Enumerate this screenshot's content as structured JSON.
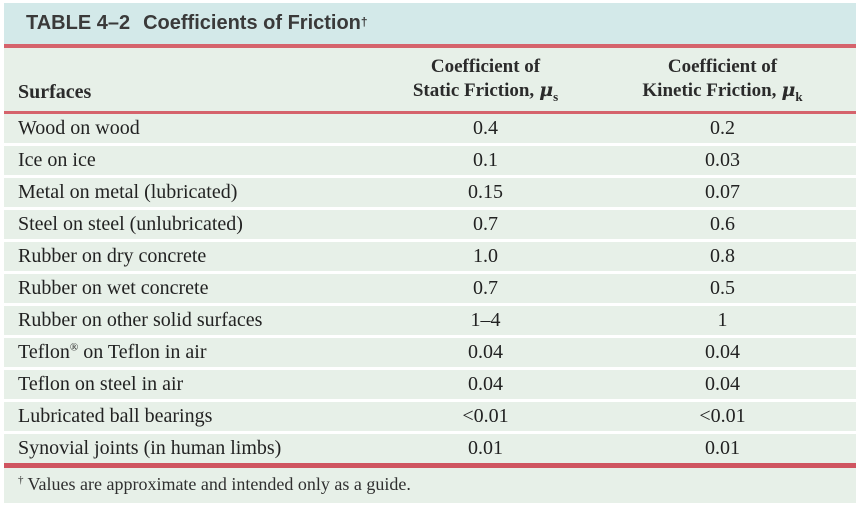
{
  "colors": {
    "title_band_bg": "#d3e9e9",
    "row_bg": "#e7f0e8",
    "rule_red": "#d5636c",
    "title_text": "#3a3a3a",
    "body_text": "#222222"
  },
  "table": {
    "title_label": "TABLE 4–2",
    "title_text": "Coefficients of Friction",
    "title_sup": "†",
    "header": {
      "surfaces": "Surfaces",
      "static": {
        "line1": "Coefficient of",
        "line2": "Static Friction,",
        "mu": "μ",
        "sub": "s"
      },
      "kinetic": {
        "line1": "Coefficient of",
        "line2": "Kinetic Friction,",
        "mu": "μ",
        "sub": "k"
      }
    },
    "rows": [
      {
        "surface": "Wood on wood",
        "static": "0.4",
        "kinetic": "0.2"
      },
      {
        "surface": "Ice on ice",
        "static": "0.1",
        "kinetic": "0.03"
      },
      {
        "surface": "Metal on metal (lubricated)",
        "static": "0.15",
        "kinetic": "0.07"
      },
      {
        "surface": "Steel on steel (unlubricated)",
        "static": "0.7",
        "kinetic": "0.6"
      },
      {
        "surface": "Rubber on dry concrete",
        "static": "1.0",
        "kinetic": "0.8"
      },
      {
        "surface": "Rubber on wet concrete",
        "static": "0.7",
        "kinetic": "0.5"
      },
      {
        "surface": "Rubber on other solid surfaces",
        "static": "1–4",
        "kinetic": "1"
      },
      {
        "surface_pre": "Teflon",
        "surface_sup": "®",
        "surface_post": " on Teflon in air",
        "static": "0.04",
        "kinetic": "0.04"
      },
      {
        "surface": "Teflon on steel in air",
        "static": "0.04",
        "kinetic": "0.04"
      },
      {
        "surface": "Lubricated ball bearings",
        "static": "<0.01",
        "kinetic": "<0.01"
      },
      {
        "surface": "Synovial joints (in human limbs)",
        "static": "0.01",
        "kinetic": "0.01"
      }
    ],
    "footnote_sup": "†",
    "footnote_text": "Values are approximate and intended only as a guide."
  }
}
